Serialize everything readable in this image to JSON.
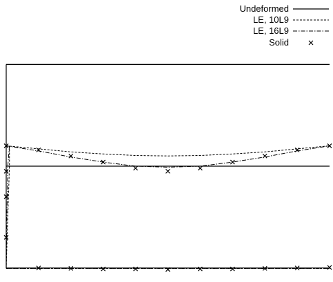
{
  "chart_data": {
    "type": "line",
    "title": "",
    "xlabel": "",
    "ylabel": "",
    "legend_placement": "top-right",
    "grid": false,
    "xlim": [
      0,
      1
    ],
    "ylim": [
      -1.05,
      1.05
    ],
    "series": [
      {
        "name": "Undeformed",
        "style": "solid",
        "paths": [
          [
            [
              0,
              -1
            ],
            [
              0,
              1
            ]
          ],
          [
            [
              0,
              1
            ],
            [
              1,
              1
            ]
          ],
          [
            [
              0,
              0
            ],
            [
              1,
              0
            ]
          ],
          [
            [
              0,
              -1
            ],
            [
              1,
              -1
            ]
          ]
        ]
      },
      {
        "name": "LE, 10L9",
        "style": "dashed",
        "paths": [
          [
            [
              0,
              0.2
            ],
            [
              0.1,
              0.17
            ],
            [
              0.2,
              0.14
            ],
            [
              0.3,
              0.12
            ],
            [
              0.4,
              0.105
            ],
            [
              0.5,
              0.1
            ],
            [
              0.6,
              0.105
            ],
            [
              0.7,
              0.12
            ],
            [
              0.8,
              0.14
            ],
            [
              0.9,
              0.17
            ],
            [
              1,
              0.2
            ]
          ],
          [
            [
              0.01,
              0.2
            ],
            [
              0.01,
              0
            ],
            [
              0.005,
              -0.5
            ],
            [
              0,
              -1.005
            ]
          ],
          [
            [
              0,
              -1.005
            ],
            [
              0.5,
              -1.005
            ],
            [
              1,
              -1.005
            ]
          ]
        ]
      },
      {
        "name": "LE, 16L9",
        "style": "dashdot",
        "paths": [
          [
            [
              0,
              0.2
            ],
            [
              0.1,
              0.15
            ],
            [
              0.2,
              0.09
            ],
            [
              0.3,
              0.04
            ],
            [
              0.4,
              0.0
            ],
            [
              0.5,
              -0.01
            ],
            [
              0.6,
              0.0
            ],
            [
              0.7,
              0.04
            ],
            [
              0.8,
              0.09
            ],
            [
              0.9,
              0.15
            ],
            [
              1,
              0.2
            ]
          ],
          [
            [
              0.01,
              0.2
            ],
            [
              0.005,
              0
            ],
            [
              0.002,
              -0.5
            ],
            [
              0,
              -1.005
            ]
          ],
          [
            [
              0,
              -1.005
            ],
            [
              0.5,
              -1.005
            ],
            [
              1,
              -1.005
            ]
          ]
        ]
      },
      {
        "name": "Solid",
        "style": "markers",
        "points": [
          [
            0,
            0.2
          ],
          [
            0.1,
            0.16
          ],
          [
            0.2,
            0.1
          ],
          [
            0.3,
            0.04
          ],
          [
            0.4,
            -0.02
          ],
          [
            0.5,
            -0.05
          ],
          [
            0.6,
            -0.02
          ],
          [
            0.7,
            0.04
          ],
          [
            0.8,
            0.1
          ],
          [
            0.9,
            0.16
          ],
          [
            1,
            0.2
          ],
          [
            0,
            -0.05
          ],
          [
            0,
            -0.3
          ],
          [
            0,
            -0.7
          ],
          [
            0.1,
            -1
          ],
          [
            0.2,
            -1.005
          ],
          [
            0.3,
            -1.01
          ],
          [
            0.4,
            -1.01
          ],
          [
            0.5,
            -1.015
          ],
          [
            0.6,
            -1.01
          ],
          [
            0.7,
            -1.01
          ],
          [
            0.8,
            -1.005
          ],
          [
            0.9,
            -1
          ],
          [
            1,
            -0.995
          ]
        ]
      }
    ]
  }
}
